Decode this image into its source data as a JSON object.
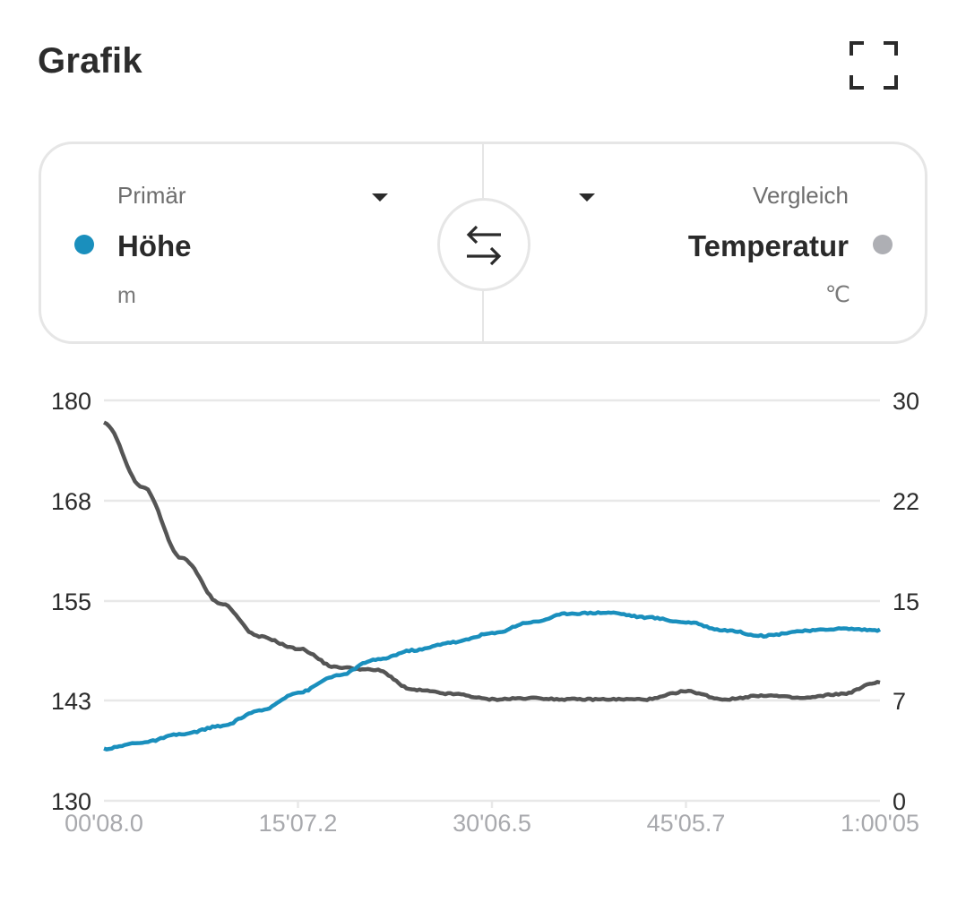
{
  "header": {
    "title": "Grafik",
    "fullscreen_icon": "fullscreen-icon"
  },
  "selector": {
    "primary": {
      "caption": "Primär",
      "metric": "Höhe",
      "unit": "m",
      "color": "#1a8fbd"
    },
    "compare": {
      "caption": "Vergleich",
      "metric": "Temperatur",
      "unit": "℃",
      "color": "#aeafb4"
    },
    "swap_icon": "swap-arrows-icon"
  },
  "colors": {
    "primary_line": "#1a8fbd",
    "compare_line": "#555555",
    "grid": "#e8e8e8",
    "x_label": "#a8a9ad"
  },
  "chart_data": {
    "type": "line",
    "title": "Grafik",
    "xlabel": "",
    "x_ticks": [
      "00'08.0",
      "15'07.2",
      "30'06.5",
      "45'05.7",
      "1:00'05"
    ],
    "left_axis": {
      "label": "Höhe (m)",
      "ticks": [
        180,
        168,
        155,
        143,
        130
      ],
      "ylim": [
        130,
        180
      ]
    },
    "right_axis": {
      "label": "Temperatur (℃)",
      "ticks": [
        30,
        22,
        15,
        7,
        0
      ],
      "ylim": [
        0,
        30
      ]
    },
    "grid": true,
    "x": [
      0,
      0.05,
      0.1,
      0.15,
      0.2,
      0.25,
      0.3,
      0.35,
      0.4,
      0.45,
      0.5,
      0.55,
      0.6,
      0.65,
      0.7,
      0.75,
      0.8,
      0.85,
      0.9,
      0.95,
      1.0
    ],
    "series": [
      {
        "name": "Höhe",
        "axis": "left",
        "unit": "m",
        "values": [
          136.5,
          137.3,
          138.3,
          139.3,
          141.2,
          143.5,
          145.6,
          147.6,
          148.8,
          149.8,
          150.9,
          152.3,
          153.4,
          153.5,
          152.9,
          152.3,
          151.3,
          150.6,
          151.2,
          151.5,
          151.3
        ]
      },
      {
        "name": "Temperatur",
        "axis": "right",
        "unit": "℃",
        "values": [
          28.3,
          23.5,
          18.2,
          14.8,
          12.3,
          11.4,
          10.0,
          9.8,
          8.3,
          8.0,
          7.6,
          7.7,
          7.6,
          7.6,
          7.6,
          8.2,
          7.6,
          7.9,
          7.7,
          8.0,
          8.9
        ]
      }
    ]
  }
}
